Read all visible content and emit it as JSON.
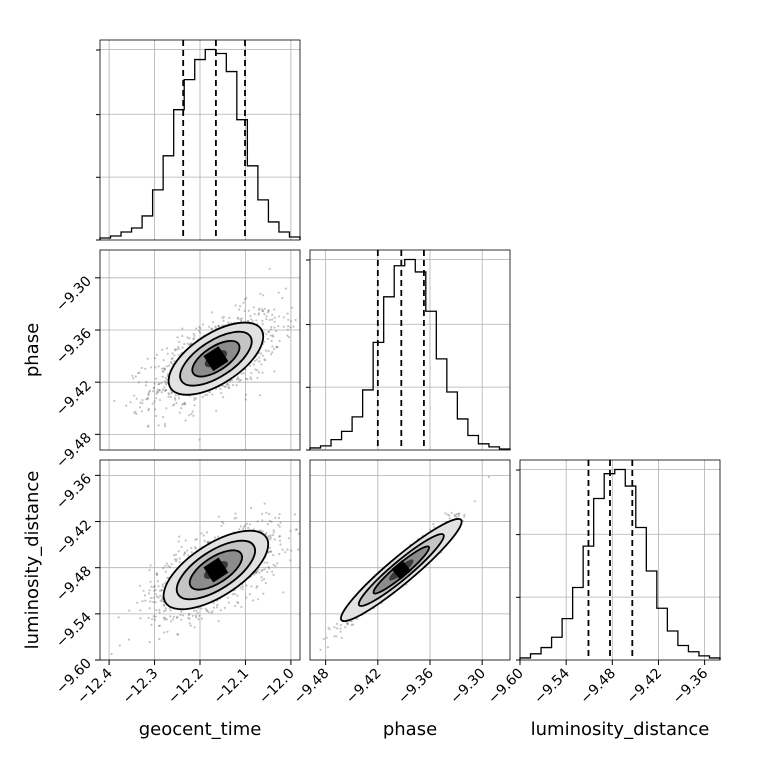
{
  "chart_data": {
    "type": "corner",
    "parameters": [
      "geocent_time",
      "phase",
      "luminosity_distance"
    ],
    "axes": {
      "geocent_time": {
        "label": "geocent_time",
        "range": [
          -12.42,
          -11.98
        ],
        "ticks": [
          -12.4,
          -12.3,
          -12.2,
          -12.1,
          -12.0
        ],
        "tick_labels": [
          "−12.4",
          "−12.3",
          "−12.2",
          "−12.1",
          "−12.0"
        ],
        "quantiles": [
          -12.237,
          -12.165,
          -12.101
        ]
      },
      "phase": {
        "label": "phase",
        "range": [
          -9.498,
          -9.268
        ],
        "ticks": [
          -9.48,
          -9.42,
          -9.36,
          -9.3
        ],
        "tick_labels": [
          "−9.48",
          "−9.42",
          "−9.36",
          "−9.30"
        ],
        "quantiles": [
          -9.42,
          -9.393,
          -9.367
        ]
      },
      "luminosity_distance": {
        "label": "luminosity_distance",
        "range": [
          -9.6,
          -9.34
        ],
        "ticks": [
          -9.6,
          -9.54,
          -9.48,
          -9.42,
          -9.36
        ],
        "tick_labels": [
          "−9.60",
          "−9.54",
          "−9.48",
          "−9.42",
          "−9.36"
        ],
        "quantiles": [
          -9.511,
          -9.483,
          -9.454
        ]
      }
    },
    "histograms": {
      "geocent_time": [
        1,
        2,
        4,
        6,
        12,
        25,
        42,
        65,
        80,
        90,
        95,
        93,
        84,
        60,
        37,
        20,
        9,
        4,
        1.5
      ],
      "phase": [
        1,
        2,
        5,
        9,
        16,
        29,
        52,
        74,
        89,
        92,
        86,
        67,
        44,
        28,
        15,
        7,
        3,
        1.5,
        0.5
      ],
      "luminosity_distance": [
        1,
        3,
        6,
        11,
        20,
        35,
        55,
        78,
        90,
        92,
        84,
        64,
        43,
        25,
        14,
        7,
        4,
        2,
        1
      ]
    },
    "grid": true
  }
}
